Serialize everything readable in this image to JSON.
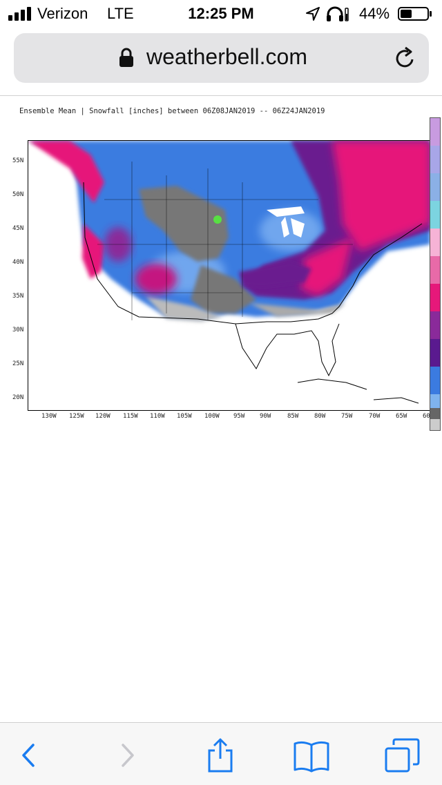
{
  "status_bar": {
    "carrier": "Verizon",
    "network": "LTE",
    "time": "12:25 PM",
    "battery_percent": "44%",
    "battery_level": 0.44,
    "signal_icon": "signal-bars-icon",
    "location_icon": "location-arrow-icon",
    "headphones_icon": "headphones-icon",
    "battery_icon": "battery-icon"
  },
  "browser": {
    "url": "weatherbell.com",
    "lock_icon": "lock-icon",
    "reload_icon": "reload-icon"
  },
  "map": {
    "title": "Ensemble Mean | Snowfall [inches] between 06Z08JAN2019 -- 06Z24JAN2019",
    "lat_labels": [
      "55N",
      "50N",
      "45N",
      "40N",
      "35N",
      "30N",
      "25N",
      "20N"
    ],
    "lon_labels": [
      "130W",
      "125W",
      "120W",
      "115W",
      "110W",
      "105W",
      "100W",
      "95W",
      "90W",
      "85W",
      "80W",
      "75W",
      "70W",
      "65W",
      "60"
    ],
    "colors": {
      "heavy_pink": "#e6187a",
      "purple": "#6a1a8f",
      "blue": "#3b7be0",
      "light_blue": "#7fb3ee",
      "gray": "#7a7a7a",
      "light_gray": "#bdbdbd"
    }
  },
  "toolbar": {
    "back_icon": "back-chevron-icon",
    "forward_icon": "forward-chevron-icon",
    "share_icon": "share-icon",
    "bookmarks_icon": "bookmarks-book-icon",
    "tabs_icon": "tabs-icon",
    "tint": "#1a7cf0"
  }
}
